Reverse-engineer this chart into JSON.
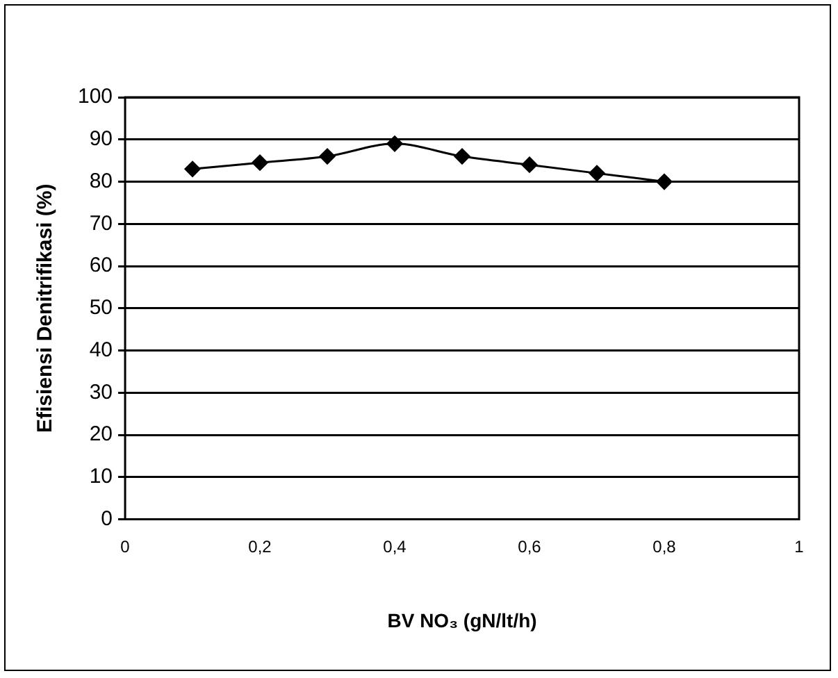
{
  "chart_data": {
    "type": "line",
    "xlabel": "BV NO₃ (gN/lt/h)",
    "ylabel": "Efisiensi Denitrifikasi (%)",
    "x": [
      0.1,
      0.2,
      0.3,
      0.4,
      0.5,
      0.6,
      0.7,
      0.8
    ],
    "series": [
      {
        "color": "#000000",
        "values": [
          83,
          84.5,
          86,
          89,
          86,
          84,
          82,
          80
        ]
      }
    ],
    "xlim": [
      0,
      1
    ],
    "xticks": [
      0,
      {
        "value": 0.2,
        "label": "0,2"
      },
      {
        "value": 0.4,
        "label": "0,4"
      },
      {
        "value": 0.6,
        "label": "0,6"
      },
      {
        "value": 0.8,
        "label": "0,8"
      },
      1
    ],
    "ylim": [
      0,
      100
    ],
    "yticks": [
      0,
      10,
      20,
      30,
      40,
      50,
      60,
      70,
      80,
      90,
      100
    ],
    "grid": "y",
    "legend": false,
    "marker": "diamond",
    "line_style": "solid"
  }
}
